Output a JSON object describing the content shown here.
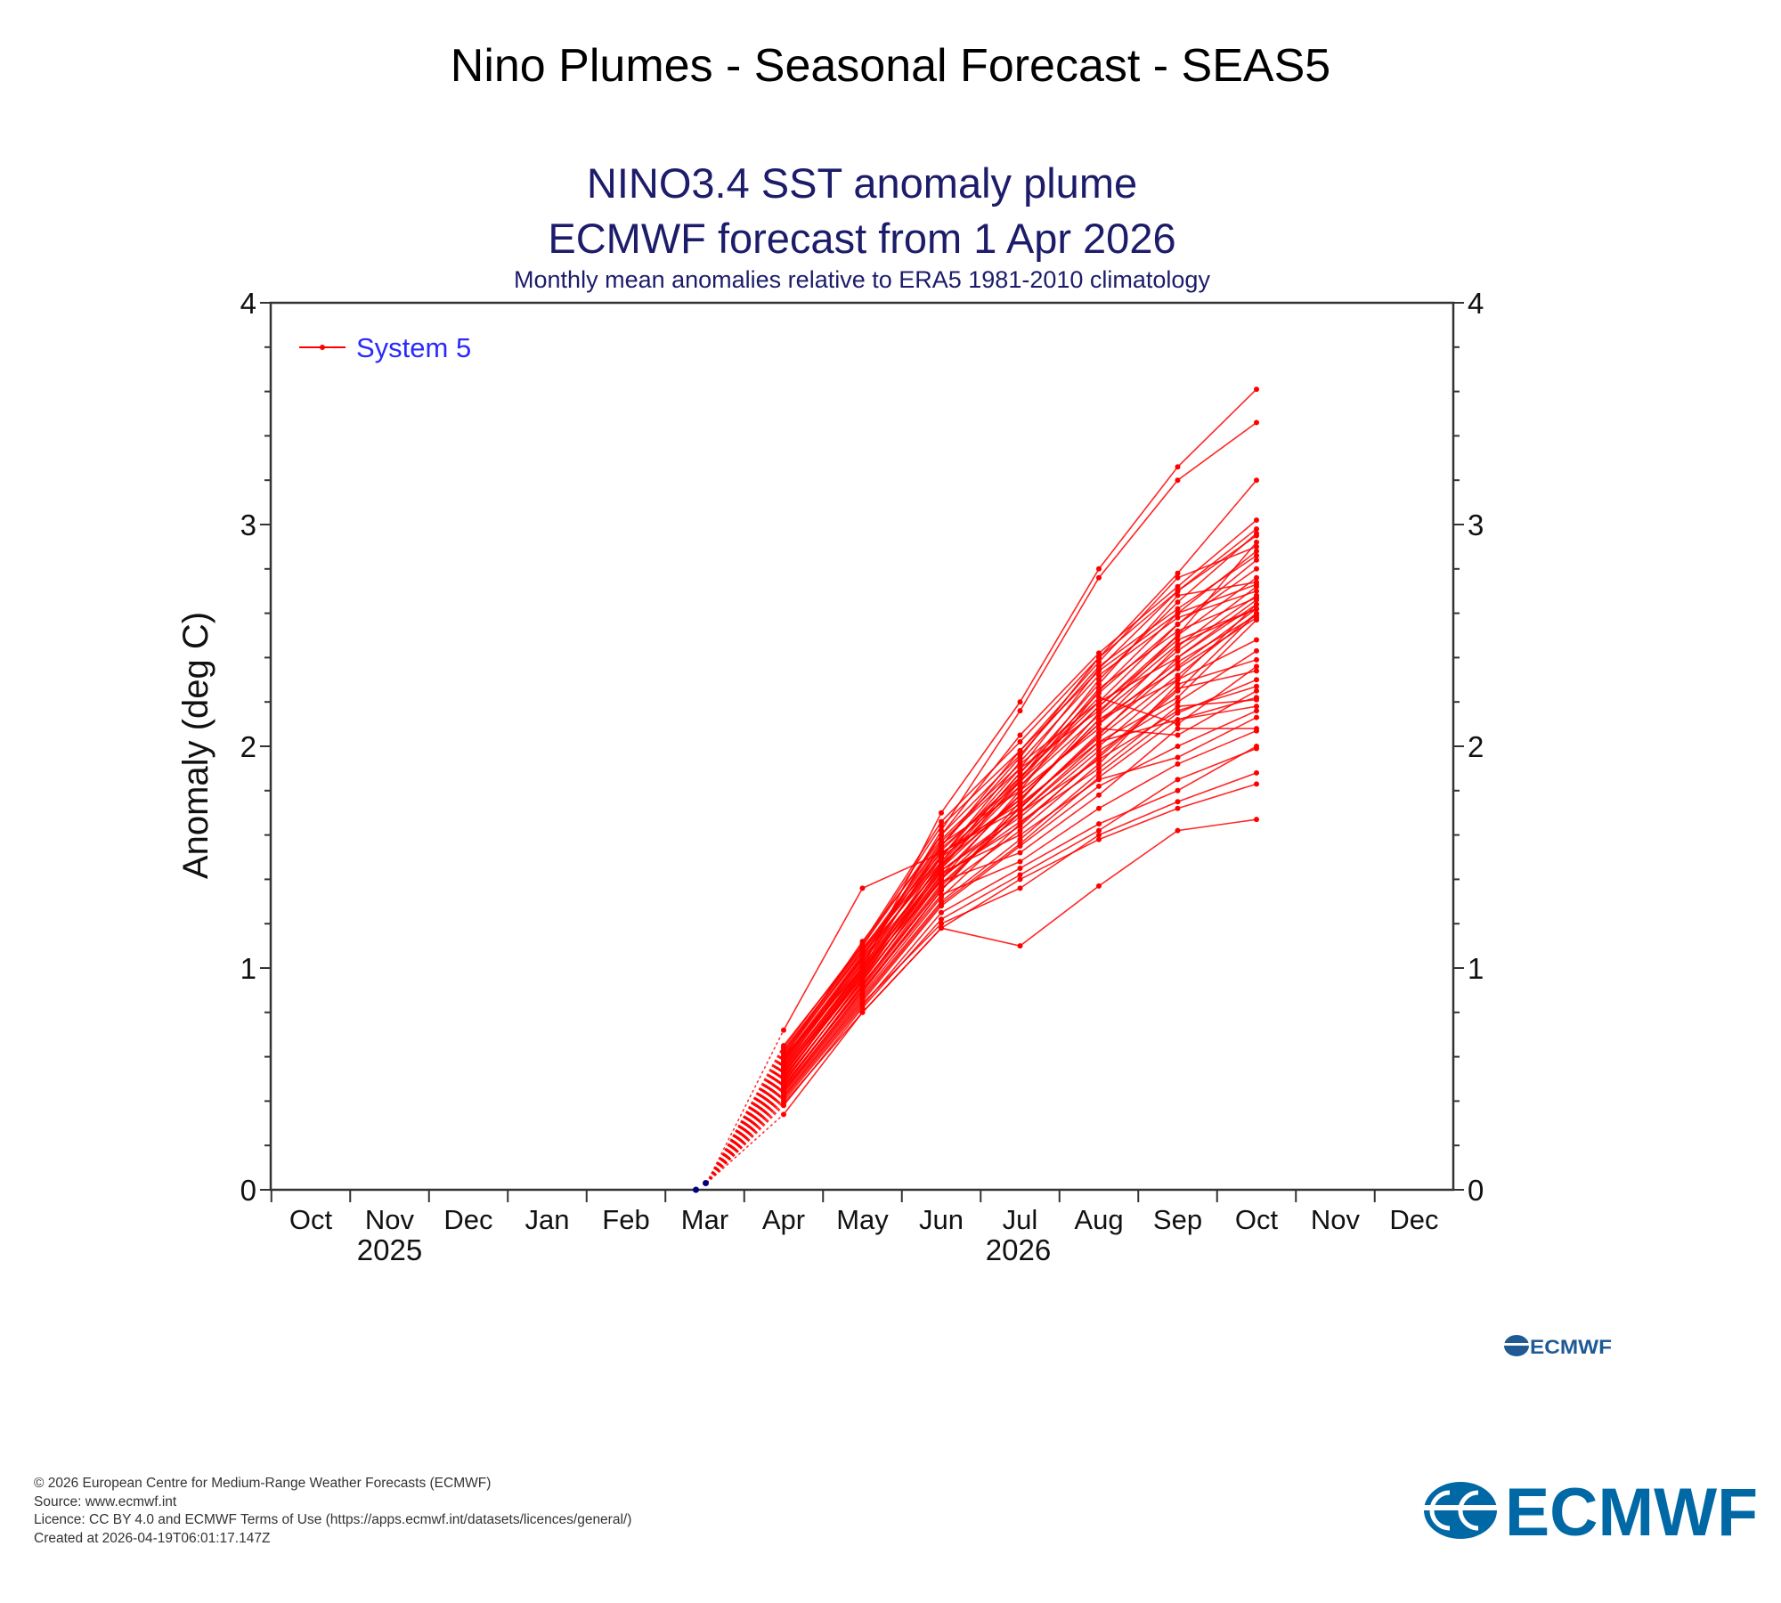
{
  "page": {
    "title": "Nino Plumes - Seasonal Forecast - SEAS5"
  },
  "footer": {
    "lines": [
      "© 2026 European Centre for Medium-Range Weather Forecasts (ECMWF)",
      "Source: www.ecmwf.int",
      "Licence: CC BY 4.0 and ECMWF Terms of Use (https://apps.ecmwf.int/datasets/licences/general/)",
      "Created at 2026-04-19T06:01:17.147Z"
    ]
  },
  "logo": {
    "text": "ECMWF",
    "color": "#0068a5"
  },
  "chart_data": {
    "type": "line",
    "title": "NINO3.4 SST anomaly plume",
    "subtitle": "ECMWF forecast from 1 Apr 2026",
    "subtitle2": "Monthly mean anomalies relative to ERA5 1981-2010 climatology",
    "ylabel": "Anomaly (deg C)",
    "xlabel": "",
    "ylim": [
      0,
      4
    ],
    "yticks": [
      "0",
      "1",
      "2",
      "3",
      "4"
    ],
    "categories": [
      "Oct",
      "Nov",
      "Dec",
      "Jan",
      "Feb",
      "Mar",
      "Apr",
      "May",
      "Jun",
      "Jul",
      "Aug",
      "Sep",
      "Oct",
      "Nov",
      "Dec"
    ],
    "year_labels": [
      {
        "label": "2025",
        "month": "Nov"
      },
      {
        "label": "2026",
        "month": "Jul"
      }
    ],
    "grid": false,
    "legend": {
      "position": "top-left",
      "entries": [
        {
          "name": "System 5",
          "color": "#ff0000"
        }
      ]
    },
    "colors": {
      "title": "#1c1c6b",
      "forecast": "#ff0000",
      "observed": "#000080",
      "legend_text": "#2a2aff"
    },
    "observed": {
      "months": [
        "Mar"
      ],
      "values": [
        0.03
      ]
    },
    "forecast_start": {
      "month": "Mar",
      "value": 0.03
    },
    "forecast_months": [
      "Apr",
      "May",
      "Jun",
      "Jul",
      "Aug",
      "Sep",
      "Oct"
    ],
    "series": [
      [
        0.6,
        1.0,
        1.7,
        2.2,
        2.8,
        3.26,
        3.61
      ],
      [
        0.58,
        1.02,
        1.62,
        2.16,
        2.76,
        3.2,
        3.46
      ],
      [
        0.55,
        1.05,
        1.55,
        1.95,
        2.4,
        2.78,
        3.2
      ],
      [
        0.65,
        1.1,
        1.6,
        2.05,
        2.42,
        2.72,
        3.02
      ],
      [
        0.62,
        1.08,
        1.5,
        1.9,
        2.35,
        2.7,
        2.98
      ],
      [
        0.5,
        0.98,
        1.45,
        1.85,
        2.3,
        2.65,
        2.96
      ],
      [
        0.52,
        1.0,
        1.55,
        1.98,
        2.38,
        2.76,
        2.9
      ],
      [
        0.48,
        0.95,
        1.4,
        1.8,
        2.25,
        2.6,
        2.88
      ],
      [
        0.6,
        1.12,
        1.58,
        1.92,
        2.2,
        2.55,
        2.84
      ],
      [
        0.45,
        0.9,
        1.35,
        1.75,
        2.15,
        2.5,
        2.76
      ],
      [
        0.57,
        1.06,
        1.48,
        1.88,
        2.28,
        2.68,
        2.74
      ],
      [
        0.53,
        0.97,
        1.42,
        1.78,
        2.1,
        2.45,
        2.72
      ],
      [
        0.63,
        1.09,
        1.52,
        1.72,
        2.05,
        2.4,
        2.66
      ],
      [
        0.47,
        0.92,
        1.38,
        1.7,
        2.0,
        2.3,
        2.64
      ],
      [
        0.56,
        1.03,
        1.46,
        1.82,
        2.18,
        2.48,
        2.62
      ],
      [
        0.44,
        0.88,
        1.32,
        1.65,
        1.95,
        2.25,
        2.6
      ],
      [
        0.59,
        1.04,
        1.5,
        1.76,
        2.12,
        2.35,
        2.58
      ],
      [
        0.51,
        0.96,
        1.44,
        1.68,
        1.98,
        2.2,
        2.43
      ],
      [
        0.46,
        0.93,
        1.36,
        1.62,
        1.92,
        2.28,
        2.39
      ],
      [
        0.54,
        1.01,
        1.47,
        1.86,
        2.22,
        2.1,
        2.36
      ],
      [
        0.43,
        0.87,
        1.3,
        1.58,
        1.88,
        2.15,
        2.3
      ],
      [
        0.61,
        1.07,
        1.56,
        1.8,
        2.08,
        2.05,
        2.25
      ],
      [
        0.49,
        0.94,
        1.41,
        1.66,
        1.9,
        2.18,
        2.21
      ],
      [
        0.72,
        1.36,
        1.52,
        1.74,
        2.02,
        2.12,
        2.18
      ],
      [
        0.42,
        0.85,
        1.28,
        1.55,
        1.82,
        2.0,
        2.16
      ],
      [
        0.55,
        1.0,
        1.43,
        1.6,
        1.85,
        1.95,
        2.13
      ],
      [
        0.5,
        0.99,
        1.39,
        1.52,
        1.78,
        2.08,
        2.08
      ],
      [
        0.45,
        0.9,
        1.33,
        1.48,
        1.72,
        1.92,
        2.07
      ],
      [
        0.4,
        0.83,
        1.25,
        1.45,
        1.65,
        1.8,
        2.0
      ],
      [
        0.38,
        0.82,
        1.22,
        1.42,
        1.62,
        1.85,
        1.99
      ],
      [
        0.41,
        0.84,
        1.2,
        1.36,
        1.6,
        1.75,
        1.88
      ],
      [
        0.39,
        0.8,
        1.18,
        1.4,
        1.58,
        1.72,
        1.83
      ],
      [
        0.34,
        0.8,
        1.18,
        1.1,
        1.37,
        1.62,
        1.67
      ],
      [
        0.64,
        1.11,
        1.66,
        2.02,
        2.4,
        2.7,
        2.95
      ],
      [
        0.58,
        1.05,
        1.6,
        1.96,
        2.36,
        2.62,
        2.86
      ],
      [
        0.52,
        0.98,
        1.5,
        1.93,
        2.32,
        2.58,
        2.7
      ],
      [
        0.48,
        0.95,
        1.46,
        1.84,
        2.26,
        2.52,
        2.67
      ],
      [
        0.56,
        1.02,
        1.53,
        1.86,
        2.2,
        2.4,
        2.64
      ],
      [
        0.6,
        1.08,
        1.57,
        1.9,
        2.16,
        2.46,
        2.62
      ],
      [
        0.44,
        0.89,
        1.35,
        1.73,
        2.04,
        2.32,
        2.6
      ],
      [
        0.53,
        0.99,
        1.45,
        1.78,
        2.1,
        2.38,
        2.59
      ],
      [
        0.47,
        0.91,
        1.37,
        1.7,
        2.02,
        2.22,
        2.57
      ],
      [
        0.62,
        1.1,
        1.64,
        1.98,
        2.34,
        2.6,
        2.73
      ],
      [
        0.5,
        0.97,
        1.48,
        1.88,
        2.24,
        2.55,
        2.8
      ],
      [
        0.57,
        1.04,
        1.51,
        1.82,
        2.14,
        2.43,
        2.68
      ],
      [
        0.46,
        0.92,
        1.4,
        1.72,
        2.06,
        2.36,
        2.62
      ],
      [
        0.54,
        1.0,
        1.47,
        1.76,
        2.12,
        2.3,
        2.48
      ],
      [
        0.49,
        0.94,
        1.42,
        1.64,
        1.96,
        2.26,
        2.34
      ],
      [
        0.42,
        0.86,
        1.29,
        1.56,
        1.86,
        2.12,
        2.22
      ],
      [
        0.59,
        1.06,
        1.54,
        1.84,
        2.18,
        2.5,
        2.92
      ],
      [
        0.51,
        0.96,
        1.44,
        1.7,
        1.94,
        2.16,
        2.27
      ]
    ]
  }
}
